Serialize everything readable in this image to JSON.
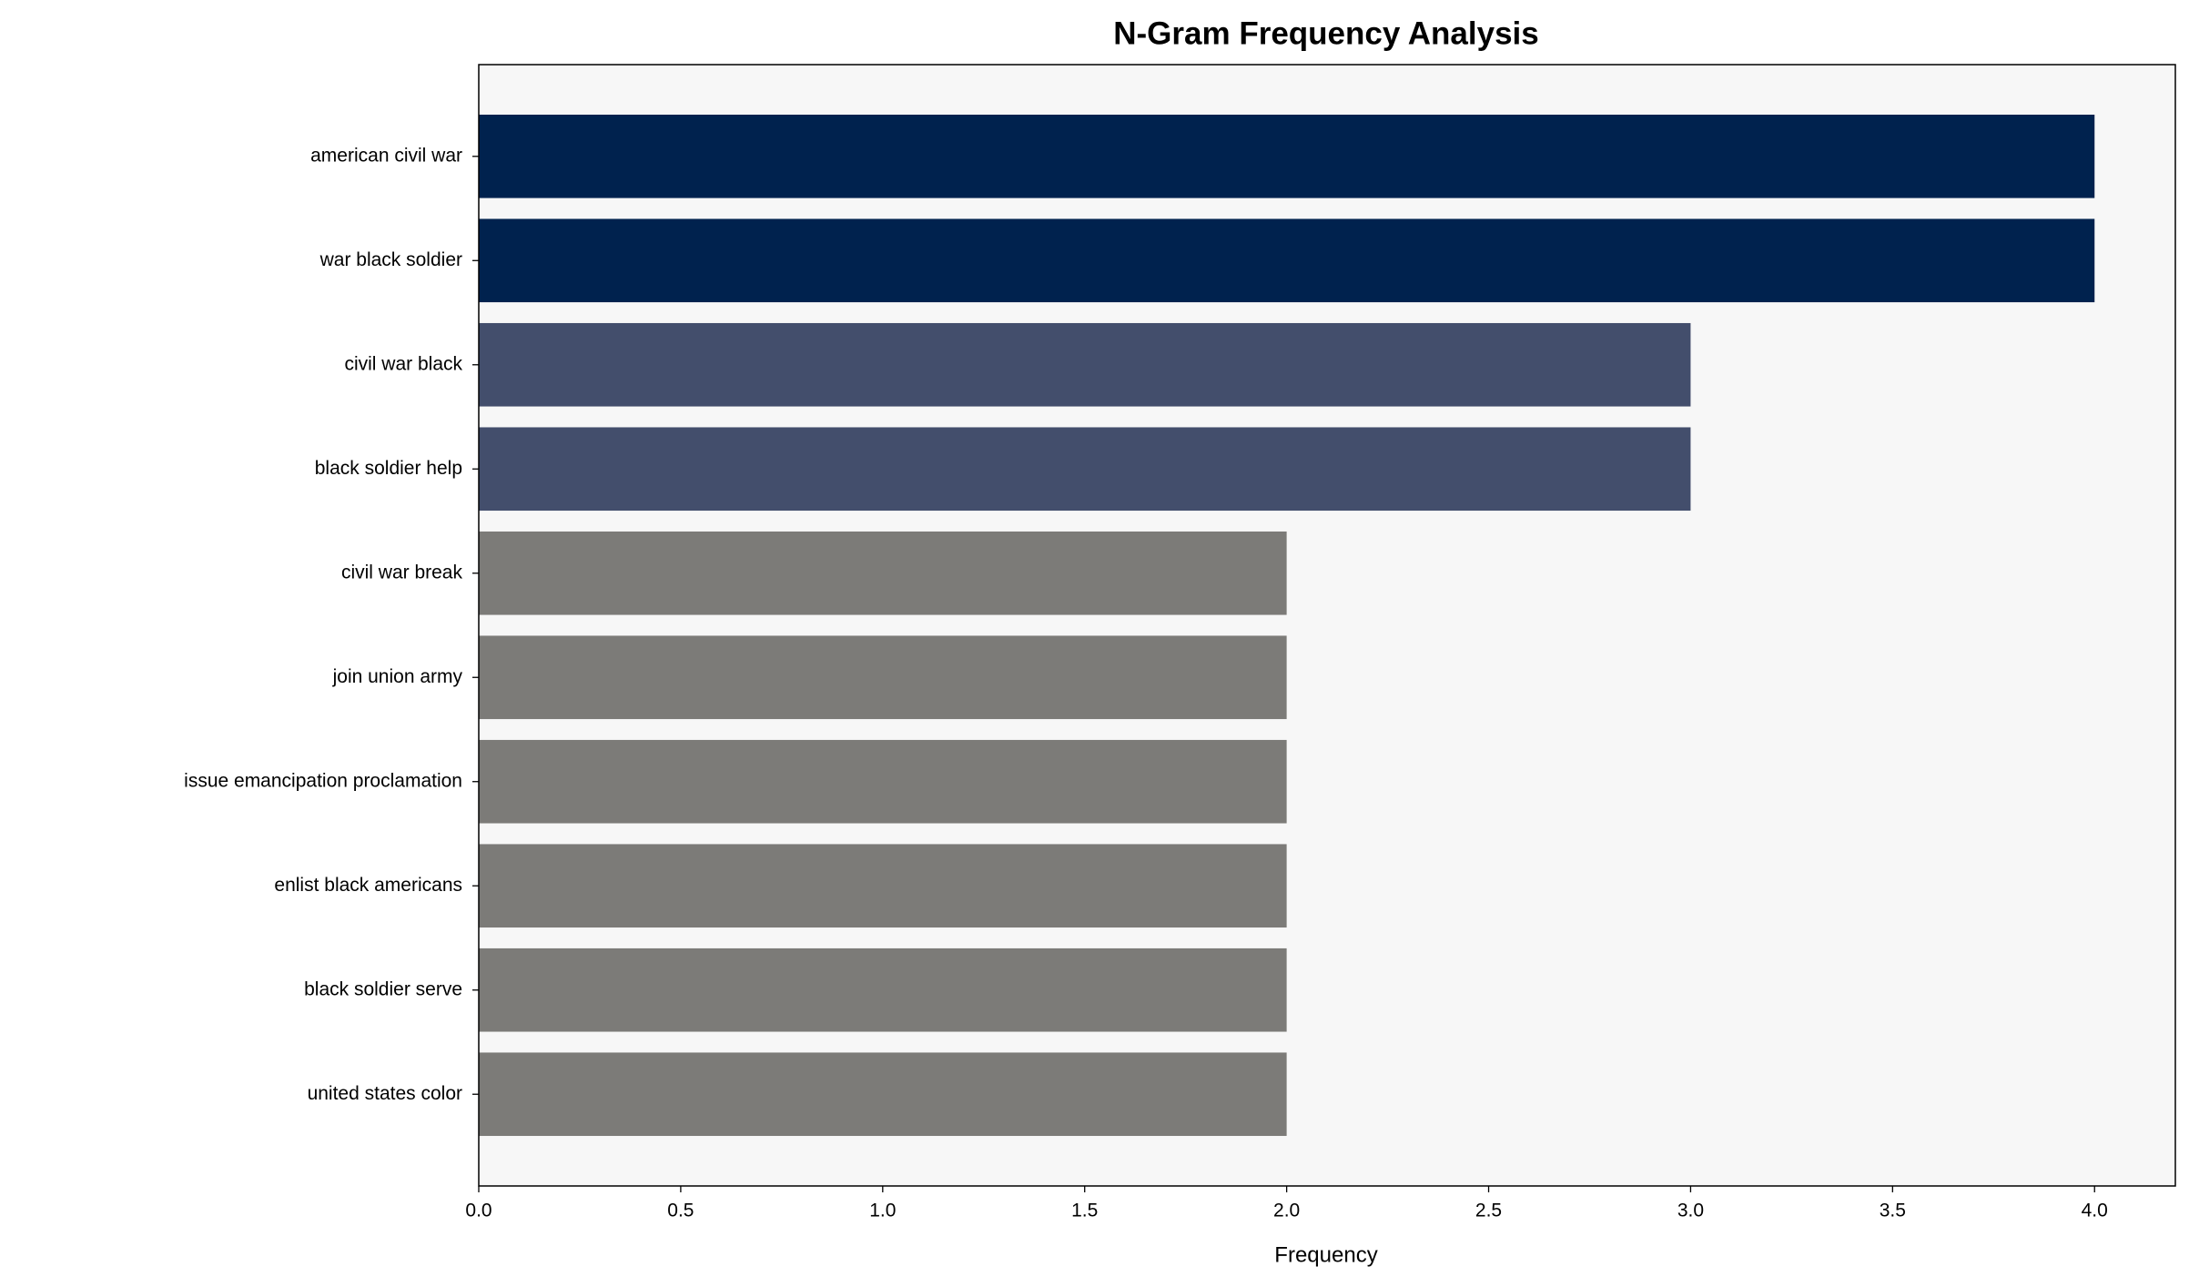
{
  "chart_data": {
    "type": "barh",
    "title": "N-Gram Frequency Analysis",
    "xlabel": "Frequency",
    "categories": [
      "american civil war",
      "war black soldier",
      "civil war black",
      "black soldier help",
      "civil war break",
      "join union army",
      "issue emancipation proclamation",
      "enlist black americans",
      "black soldier serve",
      "united states color"
    ],
    "values": [
      4,
      4,
      3,
      3,
      2,
      2,
      2,
      2,
      2,
      2
    ],
    "colors": [
      "#00224e",
      "#00224e",
      "#434e6c",
      "#434e6c",
      "#7c7b78",
      "#7c7b78",
      "#7c7b78",
      "#7c7b78",
      "#7c7b78",
      "#7c7b78"
    ],
    "xlim": [
      0,
      4.2
    ],
    "xticks": [
      {
        "value": 0,
        "label": "0.0"
      },
      0.5,
      {
        "value": 1,
        "label": "1.0"
      },
      1.5,
      {
        "value": 2,
        "label": "2.0"
      },
      2.5,
      {
        "value": 3,
        "label": "3.0"
      },
      3.5,
      {
        "value": 4,
        "label": "4.0"
      }
    ],
    "grid": false
  }
}
